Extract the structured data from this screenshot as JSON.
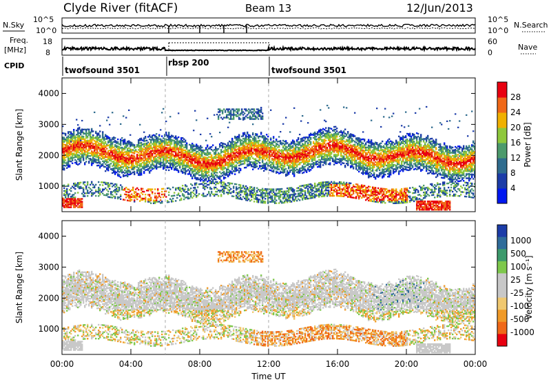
{
  "header": {
    "station": "Clyde River (fitACF)",
    "beam": "Beam 13",
    "date": "12/Jun/2013"
  },
  "noise_panel": {
    "left_label": "N.Sky",
    "right_label": "N.Search",
    "left_ticks": [
      "10^5",
      "10^0"
    ],
    "right_ticks": [
      "10^5",
      "10^0"
    ]
  },
  "freq_panel": {
    "left_label_1": "Freq.",
    "left_label_2": "[MHz]",
    "right_label": "Nave",
    "left_ticks": [
      "18",
      "8"
    ],
    "right_ticks": [
      "60",
      "0"
    ]
  },
  "cpid": {
    "label": "CPID",
    "segments": [
      {
        "name": "twofsound 3501",
        "start_h": 0,
        "end_h": 6
      },
      {
        "name": "rbsp 200",
        "start_h": 6,
        "end_h": 12
      },
      {
        "name": "twofsound 3501",
        "start_h": 12,
        "end_h": 24
      }
    ]
  },
  "colors": {
    "power_scale": [
      "#0018f0",
      "#1c3ca8",
      "#2f6c8e",
      "#4c9a6c",
      "#8ec83c",
      "#f0b000",
      "#f06818",
      "#e80010"
    ],
    "velocity_scale": [
      "#e80010",
      "#f06818",
      "#f09a28",
      "#f0c870",
      "#c8c8c8",
      "#c8c8c8",
      "#7ec84c",
      "#3c9a6c",
      "#2f6c9a",
      "#1c3ca8"
    ]
  },
  "chart_data": [
    {
      "type": "heatmap",
      "title": "",
      "quantity": "Power",
      "ylabel": "Slant Range [km]",
      "xlabel": "Time UT",
      "x_ticks": [
        "00:00",
        "04:00",
        "08:00",
        "12:00",
        "16:00",
        "20:00",
        "00:00"
      ],
      "y_ticks": [
        "1000",
        "2000",
        "3000",
        "4000"
      ],
      "ylim": [
        180,
        4500
      ],
      "xlim": [
        0,
        24
      ],
      "colorbar_label": "Power [dB]",
      "colorbar_ticks": [
        "4",
        "8",
        "12",
        "16",
        "20",
        "24",
        "28"
      ],
      "bands": [
        {
          "t0": 0.0,
          "t1": 24.0,
          "r0": 1700,
          "r1": 2400,
          "level": "high"
        },
        {
          "t0": 0.0,
          "t1": 1.2,
          "r0": 300,
          "r1": 600,
          "level": "max"
        },
        {
          "t0": 3.5,
          "t1": 6.0,
          "r0": 500,
          "r1": 950,
          "level": "max"
        },
        {
          "t0": 15.5,
          "t1": 20.0,
          "r0": 500,
          "r1": 1050,
          "level": "max"
        },
        {
          "t0": 20.5,
          "t1": 22.5,
          "r0": 220,
          "r1": 500,
          "level": "max"
        },
        {
          "t0": 9.0,
          "t1": 11.6,
          "r0": 3150,
          "r1": 3500,
          "level": "low"
        }
      ]
    },
    {
      "type": "heatmap",
      "title": "",
      "quantity": "Velocity",
      "ylabel": "Slant Range [km]",
      "xlabel": "Time UT",
      "x_ticks": [
        "00:00",
        "04:00",
        "08:00",
        "12:00",
        "16:00",
        "20:00",
        "00:00"
      ],
      "y_ticks": [
        "1000",
        "2000",
        "3000",
        "4000"
      ],
      "ylim": [
        180,
        4500
      ],
      "xlim": [
        0,
        24
      ],
      "colorbar_label": "Velocity [m s⁻¹]",
      "colorbar_ticks": [
        "1000",
        "500",
        "100",
        "25",
        "-25",
        "-100",
        "-500",
        "-1000"
      ]
    }
  ]
}
